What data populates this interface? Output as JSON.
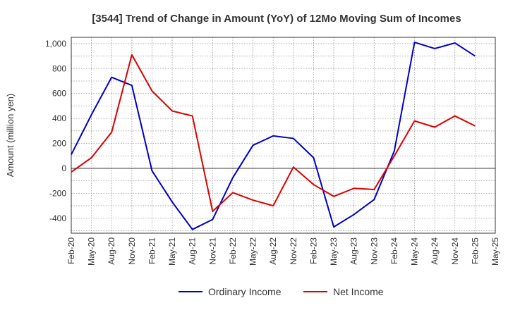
{
  "chart_data": {
    "type": "line",
    "title": "[3544]  Trend of Change in Amount (YoY) of 12Mo Moving Sum of Incomes",
    "ylabel": "Amount (million yen)",
    "xlabel": "",
    "categories": [
      "Feb-20",
      "May-20",
      "Aug-20",
      "Nov-20",
      "Feb-21",
      "May-21",
      "Aug-21",
      "Nov-21",
      "Feb-22",
      "May-22",
      "Aug-22",
      "Nov-22",
      "Feb-23",
      "May-23",
      "Aug-23",
      "Nov-23",
      "Feb-24",
      "May-24",
      "Aug-24",
      "Nov-24",
      "Feb-25",
      "May-25"
    ],
    "ylim": [
      -520,
      1050
    ],
    "yticks": [
      -400,
      -200,
      0,
      200,
      400,
      600,
      800,
      1000
    ],
    "ytick_labels": [
      "-400",
      "-200",
      "0",
      "200",
      "400",
      "600",
      "800",
      "1,000"
    ],
    "grid": true,
    "legend_position": "bottom-center",
    "series": [
      {
        "name": "Ordinary Income",
        "color": "#0000cc",
        "values": [
          110,
          430,
          730,
          665,
          -20,
          -270,
          -490,
          -410,
          -75,
          185,
          260,
          240,
          85,
          -470,
          -370,
          -250,
          140,
          1010,
          960,
          1005,
          900,
          null
        ]
      },
      {
        "name": "Net Income",
        "color": "#dd0000",
        "values": [
          -30,
          85,
          290,
          910,
          620,
          460,
          420,
          -345,
          -195,
          -255,
          -300,
          10,
          -130,
          -225,
          -160,
          -170,
          100,
          380,
          330,
          420,
          340,
          null
        ]
      }
    ]
  }
}
